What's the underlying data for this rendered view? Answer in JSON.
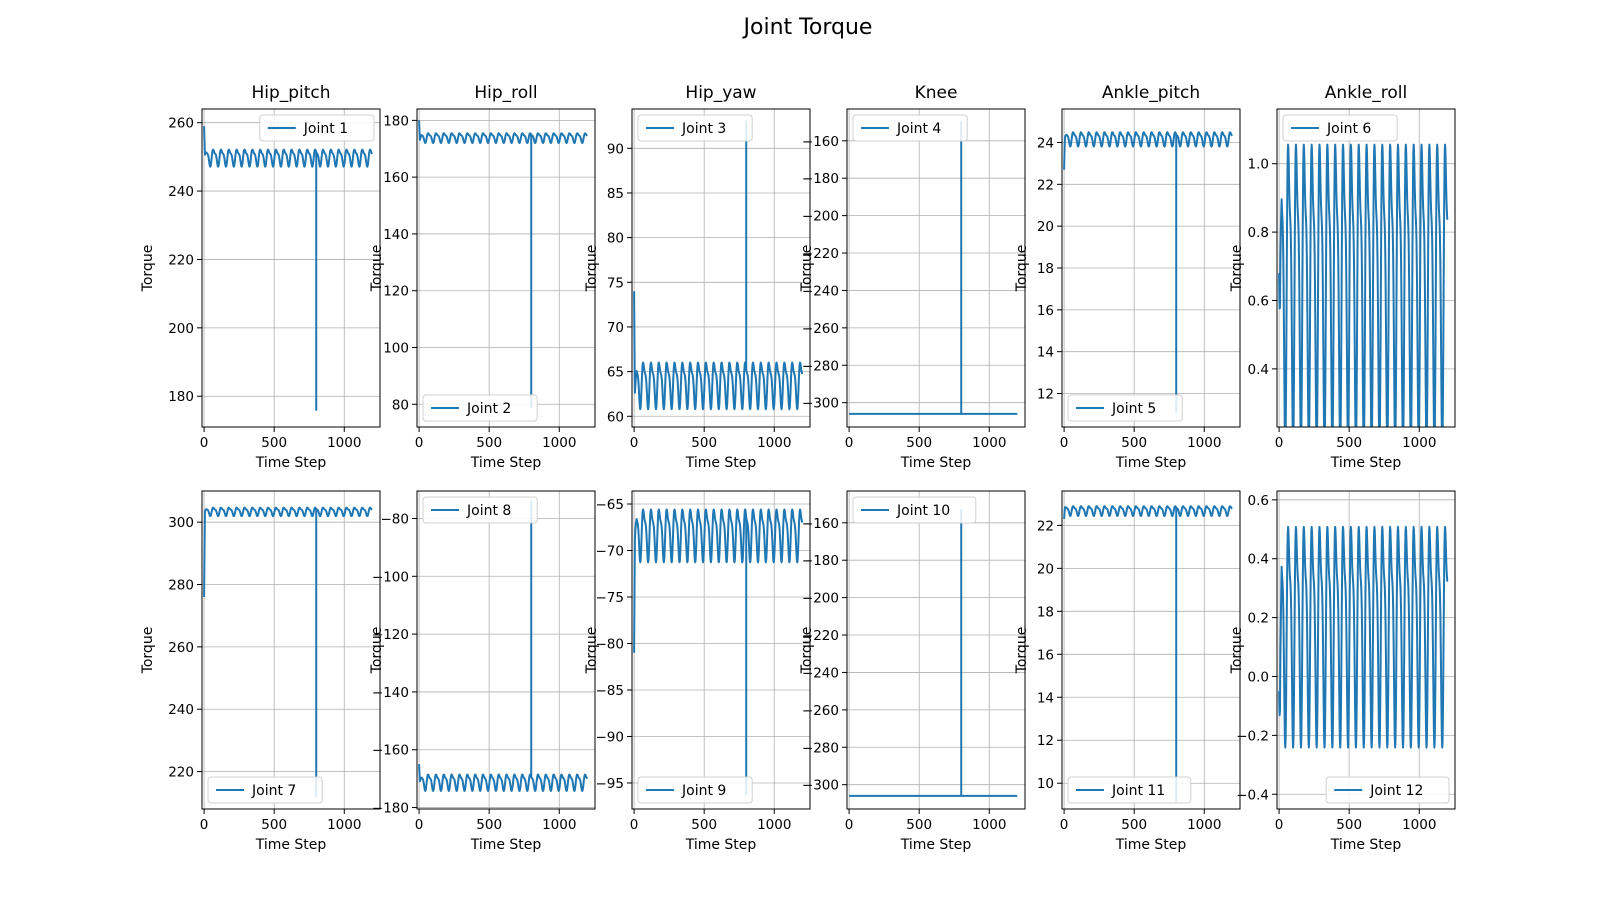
{
  "figure": {
    "title": "Joint Torque"
  },
  "chart_data": [
    {
      "type": "line",
      "title": "Hip_pitch",
      "xlabel": "Time Step",
      "ylabel": "Torque",
      "xlim": [
        -15,
        1255
      ],
      "ylim": [
        171,
        264
      ],
      "xticks": [
        0,
        500,
        1000
      ],
      "yticks": [
        180,
        200,
        220,
        240,
        260
      ],
      "grid": true,
      "legend": "upper right",
      "color": "#1f77b4",
      "series": [
        {
          "name": "Joint 1",
          "start": 259,
          "settle": 250,
          "mean": 250,
          "amp": 2.2,
          "period": 56,
          "spike_x": 800,
          "spike_to": 176
        }
      ]
    },
    {
      "type": "line",
      "title": "Hip_roll",
      "xlabel": "Time Step",
      "ylabel": "Torque",
      "xlim": [
        -15,
        1255
      ],
      "ylim": [
        72,
        184
      ],
      "xticks": [
        0,
        500,
        1000
      ],
      "yticks": [
        80,
        100,
        120,
        140,
        160,
        180
      ],
      "grid": true,
      "legend": "lower left",
      "color": "#1f77b4",
      "series": [
        {
          "name": "Joint 2",
          "start": 180,
          "settle": 172,
          "mean": 174,
          "amp": 1.5,
          "period": 56,
          "spike_x": 800,
          "spike_to": 79
        }
      ]
    },
    {
      "type": "line",
      "title": "Hip_yaw",
      "xlabel": "Time Step",
      "ylabel": "Torque",
      "xlim": [
        -15,
        1255
      ],
      "ylim": [
        58.8,
        94.4
      ],
      "xticks": [
        0,
        500,
        1000
      ],
      "yticks": [
        60,
        65,
        70,
        75,
        80,
        85,
        90
      ],
      "grid": true,
      "legend": "upper left",
      "color": "#1f77b4",
      "series": [
        {
          "name": "Joint 3",
          "start": 74,
          "settle": 61,
          "mean": 63.8,
          "amp": 2.3,
          "period": 56,
          "spike_x": 800,
          "spike_to": 93
        }
      ]
    },
    {
      "type": "line",
      "title": "Knee",
      "xlabel": "Time Step",
      "ylabel": "Torque",
      "xlim": [
        -15,
        1255
      ],
      "ylim": [
        -313,
        -143
      ],
      "xticks": [
        0,
        500,
        1000
      ],
      "yticks": [
        -160,
        -180,
        -200,
        -220,
        -240,
        -260,
        -280,
        -300
      ],
      "grid": true,
      "legend": "upper left",
      "color": "#1f77b4",
      "series": [
        {
          "name": "Joint 4",
          "start": -306,
          "settle": -306,
          "mean": -306,
          "amp": 0,
          "period": 56,
          "spike_x": 800,
          "spike_to": -150
        }
      ]
    },
    {
      "type": "line",
      "title": "Ankle_pitch",
      "xlabel": "Time Step",
      "ylabel": "Torque",
      "xlim": [
        -15,
        1255
      ],
      "ylim": [
        10.4,
        25.6
      ],
      "xticks": [
        0,
        500,
        1000
      ],
      "yticks": [
        12,
        14,
        16,
        18,
        20,
        22,
        24
      ],
      "grid": true,
      "legend": "lower left",
      "color": "#1f77b4",
      "series": [
        {
          "name": "Joint 5",
          "start": 22.7,
          "settle": 24.1,
          "mean": 24.2,
          "amp": 0.3,
          "period": 56,
          "spike_x": 800,
          "spike_to": 11.1
        }
      ]
    },
    {
      "type": "line",
      "title": "Ankle_roll",
      "xlabel": "Time Step",
      "ylabel": "Torque",
      "xlim": [
        -15,
        1255
      ],
      "ylim": [
        0.23,
        1.16
      ],
      "xticks": [
        0,
        500,
        1000
      ],
      "yticks": [
        0.4,
        0.6,
        0.8,
        1.0
      ],
      "grid": true,
      "legend": "upper left",
      "color": "#1f77b4",
      "series": [
        {
          "name": "Joint 6",
          "start": 0.68,
          "settle": 0.35,
          "mean": 0.68,
          "amp": 0.39,
          "period": 56,
          "spike_x": null,
          "spike_to": null
        }
      ]
    },
    {
      "type": "line",
      "title": "",
      "xlabel": "Time Step",
      "ylabel": "Torque",
      "xlim": [
        -15,
        1255
      ],
      "ylim": [
        208,
        310
      ],
      "xticks": [
        0,
        500,
        1000
      ],
      "yticks": [
        220,
        240,
        260,
        280,
        300
      ],
      "grid": true,
      "legend": "lower left",
      "color": "#1f77b4",
      "series": [
        {
          "name": "Joint 7",
          "start": 276,
          "settle": 303,
          "mean": 303.5,
          "amp": 1.2,
          "period": 56,
          "spike_x": 800,
          "spike_to": 212
        }
      ]
    },
    {
      "type": "line",
      "title": "",
      "xlabel": "Time Step",
      "ylabel": "Torque",
      "xlim": [
        -15,
        1255
      ],
      "ylim": [
        -180.5,
        -70.5
      ],
      "xticks": [
        0,
        500,
        1000
      ],
      "yticks": [
        -80,
        -100,
        -120,
        -140,
        -160,
        -180
      ],
      "grid": true,
      "legend": "upper left",
      "color": "#1f77b4",
      "series": [
        {
          "name": "Joint 8",
          "start": -165,
          "settle": -172,
          "mean": -171,
          "amp": 2.5,
          "period": 56,
          "spike_x": 800,
          "spike_to": -74
        }
      ]
    },
    {
      "type": "line",
      "title": "",
      "xlabel": "Time Step",
      "ylabel": "Torque",
      "xlim": [
        -15,
        1255
      ],
      "ylim": [
        -97.8,
        -63.6
      ],
      "xticks": [
        0,
        500,
        1000
      ],
      "yticks": [
        -65,
        -70,
        -75,
        -80,
        -85,
        -90,
        -95
      ],
      "grid": true,
      "legend": "lower left",
      "color": "#1f77b4",
      "series": [
        {
          "name": "Joint 9",
          "start": -81,
          "settle": -70,
          "mean": -68,
          "amp": 2.5,
          "period": 56,
          "spike_x": 800,
          "spike_to": -96.2
        }
      ]
    },
    {
      "type": "line",
      "title": "",
      "xlabel": "Time Step",
      "ylabel": "Torque",
      "xlim": [
        -15,
        1255
      ],
      "ylim": [
        -313,
        -143
      ],
      "xticks": [
        0,
        500,
        1000
      ],
      "yticks": [
        -160,
        -180,
        -200,
        -220,
        -240,
        -260,
        -280,
        -300
      ],
      "grid": true,
      "legend": "upper left",
      "color": "#1f77b4",
      "series": [
        {
          "name": "Joint 10",
          "start": -306,
          "settle": -306,
          "mean": -306,
          "amp": 0,
          "period": 56,
          "spike_x": 800,
          "spike_to": -153
        }
      ]
    },
    {
      "type": "line",
      "title": "",
      "xlabel": "Time Step",
      "ylabel": "Torque",
      "xlim": [
        -15,
        1255
      ],
      "ylim": [
        8.8,
        23.6
      ],
      "xticks": [
        0,
        500,
        1000
      ],
      "yticks": [
        10,
        12,
        14,
        16,
        18,
        20,
        22
      ],
      "grid": true,
      "legend": "lower left",
      "color": "#1f77b4",
      "series": [
        {
          "name": "Joint 11",
          "start": 22.3,
          "settle": 22.8,
          "mean": 22.7,
          "amp": 0.2,
          "period": 56,
          "spike_x": 800,
          "spike_to": 9.1
        }
      ]
    },
    {
      "type": "line",
      "title": "",
      "xlabel": "Time Step",
      "ylabel": "Torque",
      "xlim": [
        -15,
        1255
      ],
      "ylim": [
        -0.45,
        0.63
      ],
      "xticks": [
        0,
        500,
        1000
      ],
      "yticks": [
        0.6,
        0.4,
        0.2,
        0.0,
        -0.2,
        -0.4
      ],
      "grid": true,
      "legend": "lower right",
      "color": "#1f77b4",
      "series": [
        {
          "name": "Joint 12",
          "start": -0.05,
          "settle": -0.42,
          "mean": 0.19,
          "amp": 0.33,
          "period": 56,
          "spike_x": null,
          "spike_to": null
        }
      ]
    }
  ]
}
